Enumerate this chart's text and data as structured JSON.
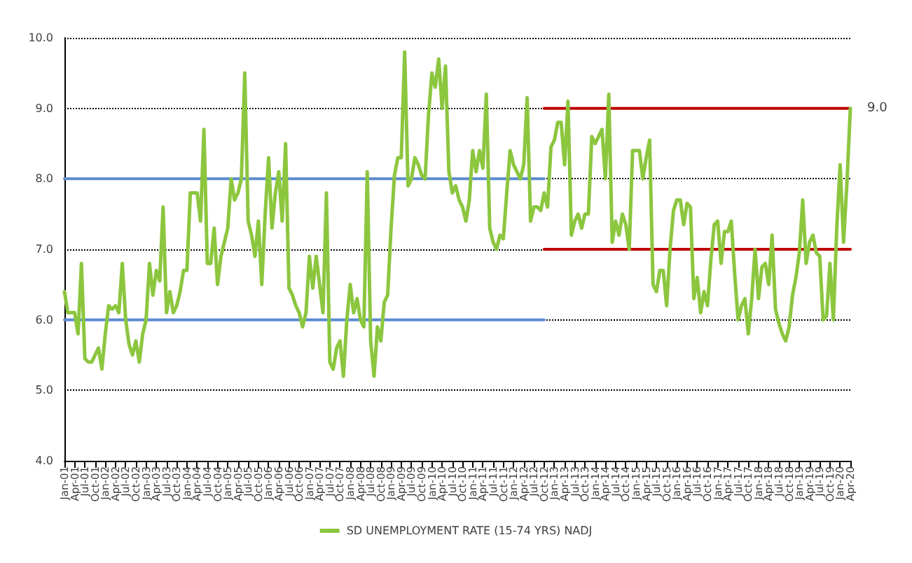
{
  "chart_data": {
    "type": "line",
    "categories": [
      "Jan-01",
      null,
      null,
      "Apr-01",
      null,
      null,
      "Jul-01",
      null,
      null,
      "Oct-01",
      null,
      null,
      "Jan-02",
      null,
      null,
      "Apr-02",
      null,
      null,
      "Jul-02",
      null,
      null,
      "Oct-02",
      null,
      null,
      "Jan-03",
      null,
      null,
      "Apr-03",
      null,
      null,
      "Jul-03",
      null,
      null,
      "Oct-03",
      null,
      null,
      "Jan-04",
      null,
      null,
      "Apr-04",
      null,
      null,
      "Jul-04",
      null,
      null,
      "Oct-04",
      null,
      null,
      "Jan-05",
      null,
      null,
      "Apr-05",
      null,
      null,
      "Jul-05",
      null,
      null,
      "Oct-05",
      null,
      null,
      "Jan-06",
      null,
      null,
      "Apr-06",
      null,
      null,
      "Jul-06",
      null,
      null,
      "Oct-06",
      null,
      null,
      "Jan-07",
      null,
      null,
      "Apr-07",
      null,
      null,
      "Jul-07",
      null,
      null,
      "Oct-07",
      null,
      null,
      "Jan-08",
      null,
      null,
      "Apr-08",
      null,
      null,
      "Jul-08",
      null,
      null,
      "Oct-08",
      null,
      null,
      "Jan-09",
      null,
      null,
      "Apr-09",
      null,
      null,
      "Jul-09",
      null,
      null,
      "Oct-09",
      null,
      null,
      "Jan-10",
      null,
      null,
      "Apr-10",
      null,
      null,
      "Jul-10",
      null,
      null,
      "Oct-10",
      null,
      null,
      "Jan-11",
      null,
      null,
      "Apr-11",
      null,
      null,
      "Jul-11",
      null,
      null,
      "Oct-11",
      null,
      null,
      "Jan-12",
      null,
      null,
      "Apr-12",
      null,
      null,
      "Jul-12",
      null,
      null,
      "Oct-12",
      null,
      null,
      "Jan-13",
      null,
      null,
      "Apr-13",
      null,
      null,
      "Jul-13",
      null,
      null,
      "Oct-13",
      null,
      null,
      "Jan-14",
      null,
      null,
      "Apr-14",
      null,
      null,
      "Jul-14",
      null,
      null,
      "Oct-14",
      null,
      null,
      "Jan-15",
      null,
      null,
      "Apr-15",
      null,
      null,
      "Jul-15",
      null,
      null,
      "Oct-15",
      null,
      null,
      "Jan-16",
      null,
      null,
      "Apr-16",
      null,
      null,
      "Jul-16",
      null,
      null,
      "Oct-16",
      null,
      null,
      "Jan-17",
      null,
      null,
      "Apr-17",
      null,
      null,
      "Jul-17",
      null,
      null,
      "Oct-17",
      null,
      null,
      "Jan-18",
      null,
      null,
      "Apr-18",
      null,
      null,
      "Jul-18",
      null,
      null,
      "Oct-18",
      null,
      null,
      "Jan-19",
      null,
      null,
      "Apr-19",
      null,
      null,
      "Jul-19",
      null,
      null,
      "Oct-19",
      null,
      null,
      "Jan-20",
      null,
      null,
      "Apr-20"
    ],
    "series": [
      {
        "name": "SD UNEMPLOYMENT RATE (15-74 YRS) NADJ",
        "color": "#8cc63f",
        "values": [
          6.4,
          6.1,
          6.1,
          6.1,
          5.8,
          6.8,
          5.45,
          5.4,
          5.4,
          5.5,
          5.6,
          5.3,
          5.8,
          6.2,
          6.15,
          6.2,
          6.1,
          6.8,
          6.0,
          5.65,
          5.5,
          5.7,
          5.4,
          5.8,
          6.0,
          6.8,
          6.35,
          6.7,
          6.55,
          7.6,
          6.1,
          6.4,
          6.1,
          6.2,
          6.4,
          6.7,
          6.7,
          7.8,
          7.8,
          7.8,
          7.4,
          8.7,
          6.8,
          6.8,
          7.3,
          6.5,
          6.9,
          7.1,
          7.3,
          8.0,
          7.7,
          7.8,
          8.0,
          9.5,
          7.4,
          7.2,
          6.9,
          7.4,
          6.5,
          7.5,
          8.3,
          7.3,
          7.8,
          8.1,
          7.4,
          8.5,
          6.45,
          6.35,
          6.2,
          6.1,
          5.9,
          6.1,
          6.9,
          6.45,
          6.9,
          6.5,
          6.1,
          7.8,
          5.4,
          5.3,
          5.6,
          5.7,
          5.2,
          6.0,
          6.5,
          6.1,
          6.3,
          6.0,
          5.9,
          8.1,
          5.7,
          5.2,
          5.9,
          5.7,
          6.25,
          6.35,
          7.3,
          8.05,
          8.3,
          8.3,
          9.8,
          7.9,
          8.0,
          8.3,
          8.2,
          8.05,
          8.0,
          8.9,
          9.5,
          9.3,
          9.7,
          9.0,
          9.6,
          8.1,
          7.8,
          7.9,
          7.7,
          7.6,
          7.4,
          7.7,
          8.4,
          8.1,
          8.4,
          8.15,
          9.2,
          7.3,
          7.1,
          7.0,
          7.2,
          7.15,
          7.8,
          8.4,
          8.2,
          8.1,
          8.0,
          8.2,
          9.15,
          7.4,
          7.6,
          7.6,
          7.55,
          7.8,
          7.6,
          8.45,
          8.55,
          8.8,
          8.8,
          8.2,
          9.1,
          7.2,
          7.4,
          7.5,
          7.3,
          7.5,
          7.5,
          8.6,
          8.5,
          8.6,
          8.7,
          8.0,
          9.2,
          7.1,
          7.4,
          7.2,
          7.5,
          7.35,
          7.0,
          8.4,
          8.4,
          8.4,
          8.0,
          8.3,
          8.55,
          6.5,
          6.4,
          6.7,
          6.7,
          6.2,
          7.0,
          7.55,
          7.7,
          7.7,
          7.35,
          7.65,
          7.6,
          6.3,
          6.6,
          6.1,
          6.4,
          6.2,
          6.85,
          7.35,
          7.4,
          6.8,
          7.25,
          7.25,
          7.4,
          6.65,
          6.0,
          6.2,
          6.3,
          5.8,
          6.3,
          7.0,
          6.3,
          6.75,
          6.8,
          6.5,
          7.2,
          6.15,
          5.95,
          5.8,
          5.7,
          5.9,
          6.35,
          6.6,
          6.95,
          7.7,
          6.8,
          7.1,
          7.2,
          6.95,
          6.9,
          6.0,
          6.05,
          6.8,
          6.0,
          7.3,
          8.2,
          7.1,
          7.95,
          9.0
        ]
      },
      {
        "type": "line",
        "color": "#5b8bd0",
        "x": [
          "Jan-01",
          "Oct-12"
        ],
        "values": [
          8.0,
          8.0
        ]
      },
      {
        "type": "line",
        "color": "#5b8bd0",
        "x": [
          "Jan-01",
          "Oct-12"
        ],
        "values": [
          6.0,
          6.0
        ]
      },
      {
        "type": "line",
        "color": "#c00000",
        "x": [
          "Oct-12",
          "Apr-20"
        ],
        "values": [
          9.0,
          9.0
        ]
      },
      {
        "type": "line",
        "color": "#c00000",
        "x": [
          "Oct-12",
          "Apr-20"
        ],
        "values": [
          7.0,
          7.0
        ]
      }
    ],
    "ylim": [
      4,
      10
    ],
    "yticks": [
      {
        "value": 4,
        "label": "4.0"
      },
      {
        "value": 5,
        "label": "5.0"
      },
      {
        "value": 6,
        "label": "6.0"
      },
      {
        "value": 7,
        "label": "7.0"
      },
      {
        "value": 8,
        "label": "8.0"
      },
      {
        "value": 9,
        "label": "9.0"
      },
      {
        "value": 10,
        "label": "10.0"
      }
    ],
    "annotations": [
      {
        "text": "9.0",
        "x": "Apr-20",
        "y": 9.0
      }
    ],
    "grid": "y",
    "legend": "bottom",
    "marker": "none",
    "line_style": "solid"
  }
}
